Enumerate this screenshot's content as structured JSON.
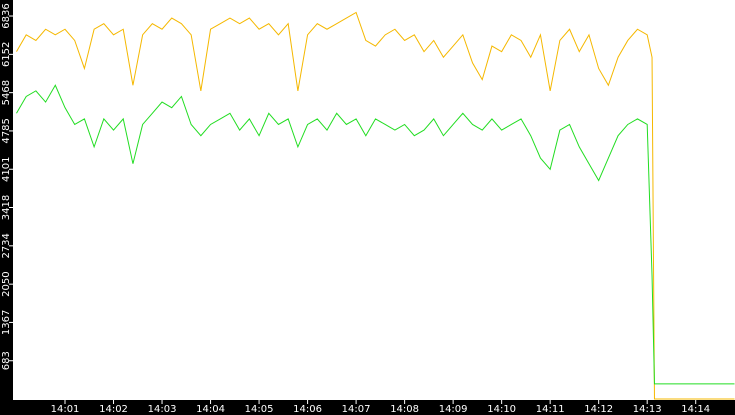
{
  "chart_data": {
    "type": "line",
    "x": [
      0,
      0.2,
      0.4,
      0.6,
      0.8,
      1.0,
      1.2,
      1.4,
      1.6,
      1.8,
      2.0,
      2.2,
      2.4,
      2.6,
      2.8,
      3.0,
      3.2,
      3.4,
      3.6,
      3.8,
      4.0,
      4.2,
      4.4,
      4.6,
      4.8,
      5.0,
      5.2,
      5.4,
      5.6,
      5.8,
      6.0,
      6.2,
      6.4,
      6.6,
      6.8,
      7.0,
      7.2,
      7.4,
      7.6,
      7.8,
      8.0,
      8.2,
      8.4,
      8.6,
      8.8,
      9.0,
      9.2,
      9.4,
      9.6,
      9.8,
      10.0,
      10.2,
      10.4,
      10.6,
      10.8,
      11.0,
      11.2,
      11.4,
      11.6,
      11.8,
      12.0,
      12.2,
      12.4,
      12.6,
      12.8,
      13.0,
      13.1,
      13.15,
      14.8
    ],
    "series": [
      {
        "color": "#f5b800",
        "values": [
          6200,
          6500,
          6400,
          6600,
          6500,
          6600,
          6400,
          5900,
          6600,
          6700,
          6500,
          6600,
          5600,
          6500,
          6700,
          6600,
          6800,
          6700,
          6500,
          5500,
          6600,
          6700,
          6800,
          6700,
          6800,
          6600,
          6700,
          6500,
          6700,
          5500,
          6500,
          6700,
          6600,
          6700,
          6800,
          6900,
          6400,
          6300,
          6500,
          6600,
          6400,
          6500,
          6200,
          6400,
          6100,
          6300,
          6500,
          6000,
          5700,
          6300,
          6200,
          6500,
          6400,
          6100,
          6500,
          5500,
          6400,
          6600,
          6200,
          6500,
          5900,
          5600,
          6100,
          6400,
          6600,
          6500,
          6100,
          0,
          0
        ]
      },
      {
        "color": "#22dd22",
        "values": [
          5100,
          5400,
          5500,
          5300,
          5600,
          5200,
          4900,
          5000,
          4500,
          5000,
          4800,
          5000,
          4200,
          4900,
          5100,
          5300,
          5200,
          5400,
          4900,
          4700,
          4900,
          5000,
          5100,
          4800,
          5000,
          4700,
          5100,
          4900,
          5000,
          4500,
          4900,
          5000,
          4800,
          5100,
          4900,
          5000,
          4700,
          5000,
          4900,
          4800,
          4900,
          4700,
          4800,
          5000,
          4700,
          4900,
          5100,
          4900,
          4800,
          5000,
          4800,
          4900,
          5000,
          4700,
          4300,
          4100,
          4800,
          4900,
          4500,
          4200,
          3900,
          4300,
          4700,
          4900,
          5000,
          4900,
          2200,
          270,
          270
        ]
      }
    ],
    "xlim": [
      -0.072,
      14.81
    ],
    "xticks": [
      {
        "value": 1,
        "label": "14:01"
      },
      {
        "value": 2,
        "label": "14:02"
      },
      {
        "value": 3,
        "label": "14:03"
      },
      {
        "value": 4,
        "label": "14:04"
      },
      {
        "value": 5,
        "label": "14:05"
      },
      {
        "value": 6,
        "label": "14:06"
      },
      {
        "value": 7,
        "label": "14:07"
      },
      {
        "value": 8,
        "label": "14:08"
      },
      {
        "value": 9,
        "label": "14:09"
      },
      {
        "value": 10,
        "label": "14:10"
      },
      {
        "value": 11,
        "label": "14:11"
      },
      {
        "value": 12,
        "label": "14:12"
      },
      {
        "value": 13,
        "label": "14:13"
      },
      {
        "value": 14,
        "label": "14:14"
      }
    ],
    "ylim": [
      0,
      7122
    ],
    "yticks": [
      683,
      1367,
      2050,
      2734,
      3418,
      4101,
      4785,
      5468,
      6152,
      6836
    ]
  }
}
